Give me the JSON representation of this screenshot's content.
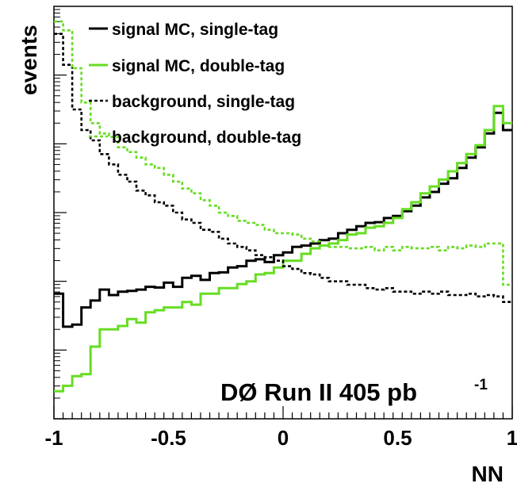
{
  "chart_data": {
    "type": "line",
    "xlabel": "NN",
    "ylabel": "events",
    "xlim": [
      -1,
      1
    ],
    "ylim_log10": [
      0,
      6
    ],
    "y_scale": "log",
    "x_ticks": [
      "-1",
      "-0.5",
      "0",
      "0.5",
      "1"
    ],
    "grid": false,
    "legend_position": "top-left",
    "annotation": {
      "text": "DØ Run II  405 pb",
      "superscript": "-1"
    },
    "bins_x": [
      -1.0,
      -0.96,
      -0.92,
      -0.88,
      -0.84,
      -0.8,
      -0.76,
      -0.72,
      -0.68,
      -0.64,
      -0.6,
      -0.56,
      -0.52,
      -0.48,
      -0.44,
      -0.4,
      -0.36,
      -0.32,
      -0.28,
      -0.24,
      -0.2,
      -0.16,
      -0.12,
      -0.08,
      -0.04,
      0.0,
      0.04,
      0.08,
      0.12,
      0.16,
      0.2,
      0.24,
      0.28,
      0.32,
      0.36,
      0.4,
      0.44,
      0.48,
      0.52,
      0.56,
      0.6,
      0.64,
      0.68,
      0.72,
      0.76,
      0.8,
      0.84,
      0.88,
      0.92,
      0.96,
      1.0
    ],
    "series": [
      {
        "name": "signal MC, single-tag",
        "color": "#000000",
        "style": "solid",
        "log10_values": [
          1.82,
          1.34,
          1.37,
          1.62,
          1.72,
          1.88,
          1.8,
          1.85,
          1.86,
          1.88,
          1.92,
          1.91,
          1.98,
          1.92,
          2.05,
          2.08,
          2.02,
          2.12,
          2.13,
          2.2,
          2.22,
          2.3,
          2.32,
          2.28,
          2.38,
          2.42,
          2.5,
          2.52,
          2.55,
          2.6,
          2.62,
          2.7,
          2.75,
          2.8,
          2.85,
          2.86,
          2.92,
          2.95,
          3.02,
          3.1,
          3.22,
          3.3,
          3.42,
          3.5,
          3.65,
          3.8,
          3.95,
          4.15,
          4.45,
          4.2
        ]
      },
      {
        "name": "signal MC, double-tag",
        "color": "#66dd22",
        "style": "solid",
        "log10_values": [
          0.4,
          0.48,
          0.62,
          0.65,
          1.05,
          1.3,
          1.3,
          1.35,
          1.45,
          1.4,
          1.55,
          1.58,
          1.62,
          1.62,
          1.7,
          1.66,
          1.82,
          1.82,
          1.9,
          1.9,
          1.96,
          2.0,
          2.1,
          2.12,
          2.2,
          2.3,
          2.3,
          2.4,
          2.48,
          2.52,
          2.55,
          2.6,
          2.68,
          2.7,
          2.78,
          2.8,
          2.85,
          2.92,
          3.05,
          3.15,
          3.28,
          3.38,
          3.48,
          3.6,
          3.72,
          3.85,
          3.98,
          4.2,
          4.55,
          4.3
        ]
      },
      {
        "name": "background, single-tag",
        "color": "#000000",
        "style": "dashed",
        "log10_values": [
          5.6,
          5.15,
          4.5,
          4.2,
          4.05,
          3.85,
          3.7,
          3.55,
          3.45,
          3.32,
          3.25,
          3.15,
          3.1,
          3.0,
          2.9,
          2.85,
          2.75,
          2.72,
          2.62,
          2.55,
          2.5,
          2.45,
          2.38,
          2.35,
          2.3,
          2.22,
          2.18,
          2.12,
          2.1,
          2.05,
          2.0,
          2.0,
          1.95,
          1.95,
          1.9,
          1.88,
          1.9,
          1.85,
          1.85,
          1.82,
          1.85,
          1.82,
          1.85,
          1.8,
          1.8,
          1.82,
          1.78,
          1.8,
          1.78,
          1.7
        ]
      },
      {
        "name": "background, double-tag",
        "color": "#66dd22",
        "style": "dashed",
        "log10_values": [
          5.78,
          5.65,
          5.1,
          4.6,
          4.3,
          4.15,
          4.1,
          3.95,
          3.88,
          3.8,
          3.7,
          3.65,
          3.55,
          3.45,
          3.35,
          3.28,
          3.18,
          3.1,
          3.0,
          2.95,
          2.88,
          2.85,
          2.82,
          2.75,
          2.7,
          2.7,
          2.68,
          2.62,
          2.58,
          2.52,
          2.5,
          2.5,
          2.48,
          2.48,
          2.5,
          2.45,
          2.5,
          2.45,
          2.5,
          2.48,
          2.48,
          2.5,
          2.45,
          2.5,
          2.48,
          2.52,
          2.5,
          2.55,
          2.55,
          1.95
        ]
      }
    ]
  }
}
